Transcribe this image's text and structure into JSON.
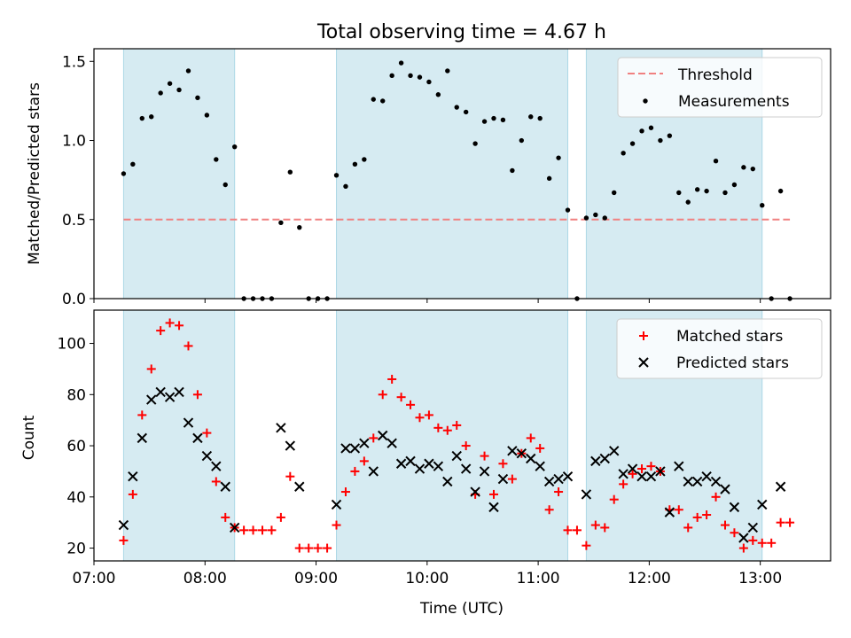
{
  "title": "Total observing time = 4.67 h",
  "colors": {
    "shade": "#add8e6",
    "threshold": "#f08080",
    "measurement": "#000000",
    "matched": "#ff0000",
    "predicted": "#000000"
  },
  "chart_data": [
    {
      "type": "scatter",
      "title": "Total observing time = 4.67 h",
      "ylabel": "Matched/Predicted stars",
      "xlabel": "",
      "ylim": [
        0,
        1.58
      ],
      "yticks": [
        "0.0",
        "0.5",
        "1.0",
        "1.5"
      ],
      "shaded_intervals": [
        [
          "07:16",
          "08:16"
        ],
        [
          "09:11",
          "11:16"
        ],
        [
          "11:26",
          "13:01"
        ]
      ],
      "legend_position": "upper right",
      "threshold": {
        "name": "Threshold",
        "value": 0.5,
        "x_range": [
          "07:16",
          "13:16"
        ]
      },
      "series": [
        {
          "name": "Measurements",
          "points": [
            [
              "07:16",
              0.79
            ],
            [
              "07:21",
              0.85
            ],
            [
              "07:26",
              1.14
            ],
            [
              "07:31",
              1.15
            ],
            [
              "07:36",
              1.3
            ],
            [
              "07:41",
              1.36
            ],
            [
              "07:46",
              1.32
            ],
            [
              "07:51",
              1.44
            ],
            [
              "07:56",
              1.27
            ],
            [
              "08:01",
              1.16
            ],
            [
              "08:06",
              0.88
            ],
            [
              "08:11",
              0.72
            ],
            [
              "08:16",
              0.96
            ],
            [
              "08:21",
              0.0
            ],
            [
              "08:26",
              0.0
            ],
            [
              "08:31",
              0.0
            ],
            [
              "08:36",
              0.0
            ],
            [
              "08:41",
              0.48
            ],
            [
              "08:46",
              0.8
            ],
            [
              "08:51",
              0.45
            ],
            [
              "08:56",
              0.0
            ],
            [
              "09:01",
              0.0
            ],
            [
              "09:06",
              0.0
            ],
            [
              "09:11",
              0.78
            ],
            [
              "09:16",
              0.71
            ],
            [
              "09:21",
              0.85
            ],
            [
              "09:26",
              0.88
            ],
            [
              "09:31",
              1.26
            ],
            [
              "09:36",
              1.25
            ],
            [
              "09:41",
              1.41
            ],
            [
              "09:46",
              1.49
            ],
            [
              "09:51",
              1.41
            ],
            [
              "09:56",
              1.4
            ],
            [
              "10:01",
              1.37
            ],
            [
              "10:06",
              1.29
            ],
            [
              "10:11",
              1.44
            ],
            [
              "10:16",
              1.21
            ],
            [
              "10:21",
              1.18
            ],
            [
              "10:26",
              0.98
            ],
            [
              "10:31",
              1.12
            ],
            [
              "10:36",
              1.14
            ],
            [
              "10:41",
              1.13
            ],
            [
              "10:46",
              0.81
            ],
            [
              "10:51",
              1.0
            ],
            [
              "10:56",
              1.15
            ],
            [
              "11:01",
              1.14
            ],
            [
              "11:06",
              0.76
            ],
            [
              "11:11",
              0.89
            ],
            [
              "11:16",
              0.56
            ],
            [
              "11:21",
              0.0
            ],
            [
              "11:26",
              0.51
            ],
            [
              "11:31",
              0.53
            ],
            [
              "11:36",
              0.51
            ],
            [
              "11:41",
              0.67
            ],
            [
              "11:46",
              0.92
            ],
            [
              "11:51",
              0.98
            ],
            [
              "11:56",
              1.06
            ],
            [
              "12:01",
              1.08
            ],
            [
              "12:06",
              1.0
            ],
            [
              "12:11",
              1.03
            ],
            [
              "12:16",
              0.67
            ],
            [
              "12:21",
              0.61
            ],
            [
              "12:26",
              0.69
            ],
            [
              "12:31",
              0.68
            ],
            [
              "12:36",
              0.87
            ],
            [
              "12:41",
              0.67
            ],
            [
              "12:46",
              0.72
            ],
            [
              "12:51",
              0.83
            ],
            [
              "12:56",
              0.82
            ],
            [
              "13:01",
              0.59
            ],
            [
              "13:06",
              0.0
            ],
            [
              "13:11",
              0.68
            ],
            [
              "13:16",
              0.0
            ]
          ]
        }
      ]
    },
    {
      "type": "scatter",
      "xlabel": "Time (UTC)",
      "ylabel": "Count",
      "ylim": [
        15,
        113
      ],
      "yticks": [
        "20",
        "40",
        "60",
        "80",
        "100"
      ],
      "xlim": [
        "07:00",
        "13:38"
      ],
      "xticks": [
        "07:00",
        "08:00",
        "09:00",
        "10:00",
        "11:00",
        "12:00",
        "13:00"
      ],
      "shaded_intervals": [
        [
          "07:16",
          "08:16"
        ],
        [
          "09:11",
          "11:16"
        ],
        [
          "11:26",
          "13:01"
        ]
      ],
      "legend_position": "upper right",
      "series": [
        {
          "name": "Matched stars",
          "marker": "+",
          "points": [
            [
              "07:16",
              23
            ],
            [
              "07:21",
              41
            ],
            [
              "07:26",
              72
            ],
            [
              "07:31",
              90
            ],
            [
              "07:36",
              105
            ],
            [
              "07:41",
              108
            ],
            [
              "07:46",
              107
            ],
            [
              "07:51",
              99
            ],
            [
              "07:56",
              80
            ],
            [
              "08:01",
              65
            ],
            [
              "08:06",
              46
            ],
            [
              "08:11",
              32
            ],
            [
              "08:16",
              28
            ],
            [
              "08:21",
              27
            ],
            [
              "08:26",
              27
            ],
            [
              "08:31",
              27
            ],
            [
              "08:36",
              27
            ],
            [
              "08:41",
              32
            ],
            [
              "08:46",
              48
            ],
            [
              "08:51",
              20
            ],
            [
              "08:56",
              20
            ],
            [
              "09:01",
              20
            ],
            [
              "09:06",
              20
            ],
            [
              "09:11",
              29
            ],
            [
              "09:16",
              42
            ],
            [
              "09:21",
              50
            ],
            [
              "09:26",
              54
            ],
            [
              "09:31",
              63
            ],
            [
              "09:36",
              80
            ],
            [
              "09:41",
              86
            ],
            [
              "09:46",
              79
            ],
            [
              "09:51",
              76
            ],
            [
              "09:56",
              71
            ],
            [
              "10:01",
              72
            ],
            [
              "10:06",
              67
            ],
            [
              "10:11",
              66
            ],
            [
              "10:16",
              68
            ],
            [
              "10:21",
              60
            ],
            [
              "10:26",
              41
            ],
            [
              "10:31",
              56
            ],
            [
              "10:36",
              41
            ],
            [
              "10:41",
              53
            ],
            [
              "10:46",
              47
            ],
            [
              "10:51",
              57
            ],
            [
              "10:56",
              63
            ],
            [
              "11:01",
              59
            ],
            [
              "11:06",
              35
            ],
            [
              "11:11",
              42
            ],
            [
              "11:16",
              27
            ],
            [
              "11:21",
              27
            ],
            [
              "11:26",
              21
            ],
            [
              "11:31",
              29
            ],
            [
              "11:36",
              28
            ],
            [
              "11:41",
              39
            ],
            [
              "11:46",
              45
            ],
            [
              "11:51",
              49
            ],
            [
              "11:56",
              51
            ],
            [
              "12:01",
              52
            ],
            [
              "12:06",
              50
            ],
            [
              "12:11",
              35
            ],
            [
              "12:16",
              35
            ],
            [
              "12:21",
              28
            ],
            [
              "12:26",
              32
            ],
            [
              "12:31",
              33
            ],
            [
              "12:36",
              40
            ],
            [
              "12:41",
              29
            ],
            [
              "12:46",
              26
            ],
            [
              "12:51",
              20
            ],
            [
              "12:56",
              23
            ],
            [
              "13:01",
              22
            ],
            [
              "13:06",
              22
            ],
            [
              "13:11",
              30
            ],
            [
              "13:16",
              30
            ]
          ]
        },
        {
          "name": "Predicted stars",
          "marker": "x",
          "points": [
            [
              "07:16",
              29
            ],
            [
              "07:21",
              48
            ],
            [
              "07:26",
              63
            ],
            [
              "07:31",
              78
            ],
            [
              "07:36",
              81
            ],
            [
              "07:41",
              79
            ],
            [
              "07:46",
              81
            ],
            [
              "07:51",
              69
            ],
            [
              "07:56",
              63
            ],
            [
              "08:01",
              56
            ],
            [
              "08:06",
              52
            ],
            [
              "08:11",
              44
            ],
            [
              "08:16",
              28
            ],
            [
              "08:41",
              67
            ],
            [
              "08:46",
              60
            ],
            [
              "08:51",
              44
            ],
            [
              "09:11",
              37
            ],
            [
              "09:16",
              59
            ],
            [
              "09:21",
              59
            ],
            [
              "09:26",
              61
            ],
            [
              "09:31",
              50
            ],
            [
              "09:36",
              64
            ],
            [
              "09:41",
              61
            ],
            [
              "09:46",
              53
            ],
            [
              "09:51",
              54
            ],
            [
              "09:56",
              51
            ],
            [
              "10:01",
              53
            ],
            [
              "10:06",
              52
            ],
            [
              "10:11",
              46
            ],
            [
              "10:16",
              56
            ],
            [
              "10:21",
              51
            ],
            [
              "10:26",
              42
            ],
            [
              "10:31",
              50
            ],
            [
              "10:36",
              36
            ],
            [
              "10:41",
              47
            ],
            [
              "10:46",
              58
            ],
            [
              "10:51",
              57
            ],
            [
              "10:56",
              55
            ],
            [
              "11:01",
              52
            ],
            [
              "11:06",
              46
            ],
            [
              "11:11",
              47
            ],
            [
              "11:16",
              48
            ],
            [
              "11:26",
              41
            ],
            [
              "11:31",
              54
            ],
            [
              "11:36",
              55
            ],
            [
              "11:41",
              58
            ],
            [
              "11:46",
              49
            ],
            [
              "11:51",
              51
            ],
            [
              "11:56",
              48
            ],
            [
              "12:01",
              48
            ],
            [
              "12:06",
              50
            ],
            [
              "12:11",
              34
            ],
            [
              "12:16",
              52
            ],
            [
              "12:21",
              46
            ],
            [
              "12:26",
              46
            ],
            [
              "12:31",
              48
            ],
            [
              "12:36",
              46
            ],
            [
              "12:41",
              43
            ],
            [
              "12:46",
              36
            ],
            [
              "12:51",
              24
            ],
            [
              "12:56",
              28
            ],
            [
              "13:01",
              37
            ],
            [
              "13:11",
              44
            ]
          ]
        }
      ]
    }
  ]
}
